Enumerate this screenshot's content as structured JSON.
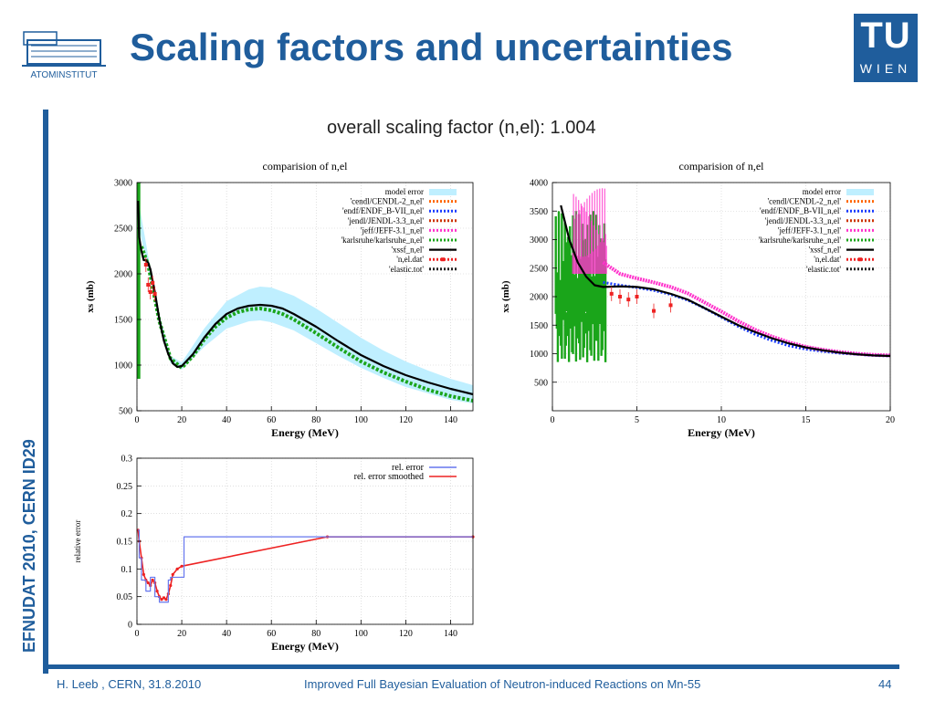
{
  "slide": {
    "title": "Scaling factors and uncertainties",
    "left_logo_text": "ATOMINSTITUT",
    "right_logo_top": "TU",
    "right_logo_bottom": "WIEN",
    "side_text": "EFNUDAT 2010, CERN     ID29",
    "footer_left": "H. Leeb , CERN, 31.8.2010",
    "footer_center": "Improved Full Bayesian Evaluation of Neutron-induced Reactions on Mn-55",
    "footer_page": "44",
    "subtitle": "overall scaling factor (n,el): 1.004",
    "colors": {
      "brand": "#1f5d9c"
    }
  },
  "chart_data": [
    {
      "type": "line",
      "title": "comparision of n,el",
      "xlabel": "Energy (MeV)",
      "ylabel": "xs (mb)",
      "xlim": [
        0,
        150
      ],
      "ylim": [
        500,
        3000
      ],
      "xticks": [
        0,
        20,
        40,
        60,
        80,
        100,
        120,
        140
      ],
      "yticks": [
        500,
        1000,
        1500,
        2000,
        2500,
        3000
      ],
      "legend": [
        "model error",
        "'cendl/CENDL-2_n,el'",
        "'endf/ENDF_B-VII_n,el'",
        "'jendl/JENDL-3.3_n,el'",
        "'jeff/JEFF-3.1_n,el'",
        "'karlsruhe/karlsruhe_n,el'",
        "'xssf_n,el'",
        "'n,el.dat'",
        "'elastic.tot'"
      ],
      "legend_colors": [
        "#bfefff",
        "#ff6600",
        "#1a3cff",
        "#cc3300",
        "#ff33cc",
        "#1aa51a",
        "#000000",
        "#ee2222",
        "#222222"
      ],
      "series": [
        {
          "name": "'xssf_n,el'",
          "x": [
            0.5,
            1,
            2,
            3,
            4,
            5,
            6,
            8,
            10,
            12,
            14,
            16,
            18,
            20,
            25,
            30,
            35,
            40,
            45,
            50,
            55,
            60,
            65,
            70,
            80,
            90,
            100,
            110,
            120,
            130,
            140,
            150
          ],
          "y": [
            2800,
            2400,
            2250,
            2150,
            2150,
            2120,
            2050,
            1800,
            1500,
            1270,
            1120,
            1020,
            980,
            990,
            1120,
            1300,
            1450,
            1560,
            1620,
            1650,
            1660,
            1650,
            1620,
            1560,
            1420,
            1260,
            1110,
            990,
            890,
            810,
            740,
            680
          ]
        },
        {
          "name": "'karlsruhe/karlsruhe_n,el'",
          "x": [
            2,
            5,
            10,
            15,
            20,
            25,
            30,
            35,
            40,
            45,
            50,
            55,
            60,
            65,
            70,
            80,
            90,
            100,
            110,
            120,
            130,
            140,
            150
          ],
          "y": [
            2300,
            2100,
            1480,
            1070,
            970,
            1100,
            1280,
            1420,
            1520,
            1580,
            1610,
            1620,
            1600,
            1560,
            1500,
            1350,
            1190,
            1040,
            920,
            820,
            730,
            660,
            610
          ]
        }
      ],
      "band": {
        "name": "model error",
        "x": [
          0,
          5,
          10,
          15,
          20,
          30,
          40,
          50,
          55,
          60,
          70,
          80,
          90,
          100,
          110,
          120,
          130,
          140,
          150
        ],
        "upper": [
          2900,
          2200,
          1560,
          1100,
          1030,
          1400,
          1700,
          1830,
          1860,
          1850,
          1760,
          1620,
          1460,
          1300,
          1160,
          1040,
          940,
          850,
          780
        ],
        "lower": [
          2600,
          2050,
          1440,
          1020,
          950,
          1200,
          1400,
          1480,
          1490,
          1470,
          1380,
          1240,
          1100,
          970,
          860,
          760,
          690,
          620,
          580
        ]
      },
      "points": {
        "name": "'n,el.dat'",
        "x": [
          4,
          5,
          6,
          7,
          8
        ],
        "y": [
          2100,
          1880,
          1800,
          1900,
          1780
        ]
      }
    },
    {
      "type": "line",
      "title": "comparision of n,el",
      "xlabel": "Energy (MeV)",
      "ylabel": "xs (mb)",
      "xlim": [
        0,
        20
      ],
      "ylim": [
        0,
        4000
      ],
      "xticks": [
        0,
        5,
        10,
        15,
        20
      ],
      "yticks": [
        500,
        1000,
        1500,
        2000,
        2500,
        3000,
        3500,
        4000
      ],
      "legend": [
        "model error",
        "'cendl/CENDL-2_n,el'",
        "'endf/ENDF_B-VII_n,el'",
        "'jendl/JENDL-3.3_n,el'",
        "'jeff/JEFF-3.1_n,el'",
        "'karlsruhe/karlsruhe_n,el'",
        "'xssf_n,el'",
        "'n,el.dat'",
        "'elastic.tot'"
      ],
      "legend_colors": [
        "#bfefff",
        "#ff6600",
        "#1a3cff",
        "#cc3300",
        "#ff33cc",
        "#1aa51a",
        "#000000",
        "#ee2222",
        "#222222"
      ],
      "series": [
        {
          "name": "'xssf_n,el'",
          "x": [
            0.5,
            1,
            1.5,
            2,
            2.5,
            3,
            4,
            5,
            6,
            7,
            8,
            9,
            10,
            11,
            12,
            13,
            14,
            15,
            16,
            17,
            18,
            19,
            20
          ],
          "y": [
            3600,
            3000,
            2600,
            2350,
            2200,
            2170,
            2180,
            2170,
            2130,
            2050,
            1950,
            1800,
            1650,
            1500,
            1380,
            1270,
            1180,
            1110,
            1060,
            1020,
            990,
            970,
            960
          ]
        },
        {
          "name": "'jeff/JEFF-3.1_n,el'",
          "x": [
            3,
            4,
            5,
            6,
            7,
            8,
            9,
            10,
            11,
            12,
            13,
            14,
            15,
            16,
            17,
            18,
            19,
            20
          ],
          "y": [
            2600,
            2400,
            2320,
            2250,
            2170,
            2060,
            1900,
            1740,
            1570,
            1420,
            1300,
            1200,
            1120,
            1070,
            1030,
            1000,
            980,
            970
          ]
        },
        {
          "name": "'endf/ENDF_B-VII_n,el'",
          "x": [
            3,
            4,
            5,
            6,
            7,
            8,
            9,
            10,
            11,
            12,
            13,
            14,
            15,
            16,
            17,
            18,
            19,
            20
          ],
          "y": [
            2250,
            2200,
            2160,
            2110,
            2040,
            1940,
            1800,
            1640,
            1480,
            1340,
            1230,
            1140,
            1080,
            1040,
            1010,
            990,
            970,
            960
          ]
        }
      ],
      "points": {
        "name": "'n,el.dat'",
        "x": [
          3.5,
          4,
          4.5,
          5,
          6,
          7
        ],
        "y": [
          2050,
          2000,
          1950,
          2000,
          1750,
          1850
        ]
      }
    },
    {
      "type": "line",
      "title": "",
      "xlabel": "Energy (MeV)",
      "ylabel": "relative error",
      "xlim": [
        0,
        150
      ],
      "ylim": [
        0,
        0.3
      ],
      "xticks": [
        0,
        20,
        40,
        60,
        80,
        100,
        120,
        140
      ],
      "yticks": [
        0,
        0.05,
        0.1,
        0.15,
        0.2,
        0.25,
        0.3
      ],
      "legend": [
        "rel. error",
        "rel. error smoothed"
      ],
      "legend_colors": [
        "#6677ee",
        "#ee2222"
      ],
      "series": [
        {
          "name": "rel. error",
          "x": [
            0.5,
            1,
            1,
            2,
            2,
            4,
            4,
            6,
            6,
            8,
            8,
            10,
            10,
            14,
            14,
            15,
            15,
            21,
            21,
            150
          ],
          "y": [
            0.17,
            0.17,
            0.12,
            0.12,
            0.08,
            0.08,
            0.06,
            0.06,
            0.085,
            0.085,
            0.05,
            0.05,
            0.04,
            0.04,
            0.08,
            0.08,
            0.085,
            0.085,
            0.158,
            0.158
          ]
        },
        {
          "name": "rel. error smoothed",
          "x": [
            0.5,
            1,
            2,
            3,
            4,
            5,
            6,
            7,
            8,
            9,
            10,
            11,
            12,
            13,
            14,
            15,
            16,
            18,
            20,
            85,
            150
          ],
          "y": [
            0.17,
            0.15,
            0.12,
            0.09,
            0.08,
            0.075,
            0.07,
            0.08,
            0.075,
            0.06,
            0.05,
            0.045,
            0.048,
            0.045,
            0.055,
            0.07,
            0.09,
            0.1,
            0.105,
            0.158,
            0.158
          ]
        }
      ]
    }
  ]
}
